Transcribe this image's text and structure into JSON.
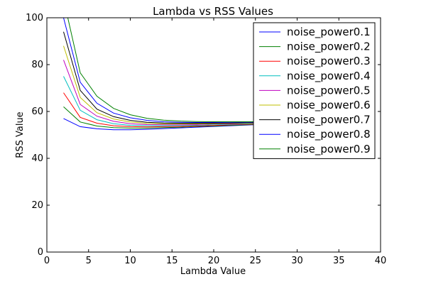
{
  "chart_data": {
    "type": "line",
    "title": "Lambda vs RSS Values",
    "xlabel": "Lambda Value",
    "ylabel": "RSS Value",
    "xlim": [
      0,
      40
    ],
    "ylim": [
      0,
      100
    ],
    "xticks": [
      0,
      5,
      10,
      15,
      20,
      25,
      30,
      35,
      40
    ],
    "yticks": [
      0,
      20,
      40,
      60,
      80,
      100
    ],
    "grid": false,
    "legend_position": "top-right",
    "x": [
      2,
      4,
      6,
      8,
      10,
      12,
      14,
      16,
      18,
      20,
      22,
      24,
      26
    ],
    "series": [
      {
        "name": "noise_power0.1",
        "color": "#0000ff",
        "values": [
          57.0,
          53.5,
          52.6,
          52.2,
          52.2,
          52.4,
          52.7,
          53.0,
          53.3,
          53.6,
          53.9,
          54.2,
          54.5
        ]
      },
      {
        "name": "noise_power0.2",
        "color": "#008000",
        "values": [
          62.0,
          55.5,
          53.8,
          53.1,
          52.9,
          52.9,
          53.1,
          53.3,
          53.6,
          53.8,
          54.1,
          54.3,
          54.6
        ]
      },
      {
        "name": "noise_power0.3",
        "color": "#ff0000",
        "values": [
          68.0,
          57.5,
          55.0,
          53.9,
          53.5,
          53.4,
          53.5,
          53.6,
          53.8,
          54.0,
          54.3,
          54.5,
          54.7
        ]
      },
      {
        "name": "noise_power0.4",
        "color": "#00bfbf",
        "values": [
          75.0,
          60.5,
          56.5,
          54.8,
          54.1,
          53.9,
          53.9,
          54.0,
          54.1,
          54.3,
          54.5,
          54.7,
          54.9
        ]
      },
      {
        "name": "noise_power0.5",
        "color": "#bf00bf",
        "values": [
          82.0,
          63.0,
          58.0,
          55.8,
          54.8,
          54.4,
          54.3,
          54.3,
          54.4,
          54.6,
          54.7,
          54.9,
          55.0
        ]
      },
      {
        "name": "noise_power0.6",
        "color": "#bfbf00",
        "values": [
          88.0,
          66.0,
          59.5,
          56.8,
          55.5,
          54.9,
          54.7,
          54.7,
          54.7,
          54.8,
          54.9,
          55.0,
          55.2
        ]
      },
      {
        "name": "noise_power0.7",
        "color": "#000000",
        "values": [
          94.0,
          69.0,
          61.0,
          57.8,
          56.2,
          55.4,
          55.1,
          55.0,
          55.0,
          55.0,
          55.1,
          55.2,
          55.3
        ]
      },
      {
        "name": "noise_power0.8",
        "color": "#0000ff",
        "values": [
          100.0,
          72.5,
          63.5,
          59.3,
          57.3,
          56.2,
          55.6,
          55.4,
          55.3,
          55.3,
          55.4,
          55.4,
          55.5
        ]
      },
      {
        "name": "noise_power0.9",
        "color": "#008000",
        "values": [
          108.0,
          76.5,
          66.5,
          61.3,
          58.6,
          57.1,
          56.3,
          55.9,
          55.7,
          55.6,
          55.6,
          55.6,
          55.7
        ]
      }
    ]
  }
}
